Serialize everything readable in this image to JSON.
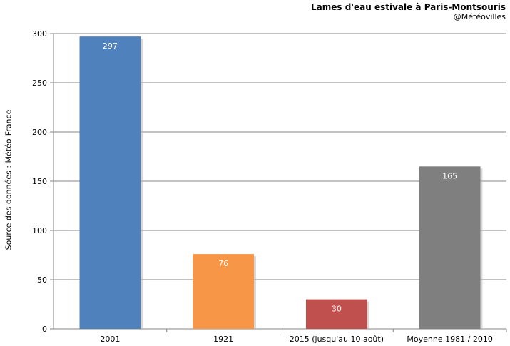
{
  "chart_data": {
    "type": "bar",
    "title": "Lames d'eau estivale à Paris-Montsouris",
    "subtitle": "@Météovilles",
    "ylabel": "Source des données : Météo-France",
    "xlabel": "",
    "categories": [
      "2001",
      "1921",
      "2015 (jusqu'au 10 août)",
      "Moyenne 1981 / 2010"
    ],
    "values": [
      297,
      76,
      30,
      165
    ],
    "data_labels": [
      "297",
      "76",
      "30",
      "165"
    ],
    "colors": [
      "#4f81bd",
      "#f79646",
      "#c0504d",
      "#7f7f7f"
    ],
    "ylim": [
      0,
      300
    ],
    "yticks": [
      0,
      50,
      100,
      150,
      200,
      250,
      300
    ],
    "grid": true,
    "legend": "none"
  }
}
